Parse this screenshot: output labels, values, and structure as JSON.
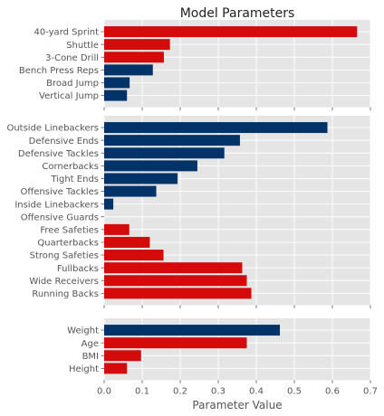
{
  "chart_data": {
    "type": "bar",
    "orientation": "horizontal",
    "title": "Model Parameters",
    "xlabel": "Parameter Value",
    "xlim": [
      0,
      0.7
    ],
    "xticks": [
      "0.0",
      "0.1",
      "0.2",
      "0.3",
      "0.4",
      "0.5",
      "0.6",
      "0.7"
    ],
    "grid": true,
    "colors": {
      "positive": "#d50a0a",
      "negative": "#013369",
      "panel": "#e5e5e5",
      "grid": "#ffffff"
    },
    "panels": [
      {
        "name": "",
        "bars": [
          {
            "label": "40-yard Sprint",
            "value": 0.665,
            "color": "#d50a0a"
          },
          {
            "label": "Shuttle",
            "value": 0.173,
            "color": "#d50a0a"
          },
          {
            "label": "3-Cone Drill",
            "value": 0.157,
            "color": "#d50a0a"
          },
          {
            "label": "Bench Press Reps",
            "value": 0.128,
            "color": "#013369"
          },
          {
            "label": "Broad Jump",
            "value": 0.067,
            "color": "#013369"
          },
          {
            "label": "Vertical Jump",
            "value": 0.06,
            "color": "#013369"
          }
        ]
      },
      {
        "name": "",
        "bars": [
          {
            "label": "Outside Linebackers",
            "value": 0.587,
            "color": "#013369"
          },
          {
            "label": "Defensive Ends",
            "value": 0.357,
            "color": "#013369"
          },
          {
            "label": "Defensive Tackles",
            "value": 0.316,
            "color": "#013369"
          },
          {
            "label": "Cornerbacks",
            "value": 0.245,
            "color": "#013369"
          },
          {
            "label": "Tight Ends",
            "value": 0.193,
            "color": "#013369"
          },
          {
            "label": "Offensive Tackles",
            "value": 0.137,
            "color": "#013369"
          },
          {
            "label": "Inside Linebackers",
            "value": 0.024,
            "color": "#013369"
          },
          {
            "label": "Offensive Guards",
            "value": 0.0,
            "color": "#013369"
          },
          {
            "label": "Free Safeties",
            "value": 0.066,
            "color": "#d50a0a"
          },
          {
            "label": "Quarterbacks",
            "value": 0.12,
            "color": "#d50a0a"
          },
          {
            "label": "Strong Safeties",
            "value": 0.156,
            "color": "#d50a0a"
          },
          {
            "label": "Fullbacks",
            "value": 0.363,
            "color": "#d50a0a"
          },
          {
            "label": "Wide Receivers",
            "value": 0.375,
            "color": "#d50a0a"
          },
          {
            "label": "Running Backs",
            "value": 0.387,
            "color": "#d50a0a"
          }
        ]
      },
      {
        "name": "",
        "bars": [
          {
            "label": "Weight",
            "value": 0.462,
            "color": "#013369"
          },
          {
            "label": "Age",
            "value": 0.375,
            "color": "#d50a0a"
          },
          {
            "label": "BMI",
            "value": 0.097,
            "color": "#d50a0a"
          },
          {
            "label": "Height",
            "value": 0.06,
            "color": "#d50a0a"
          }
        ]
      }
    ]
  }
}
